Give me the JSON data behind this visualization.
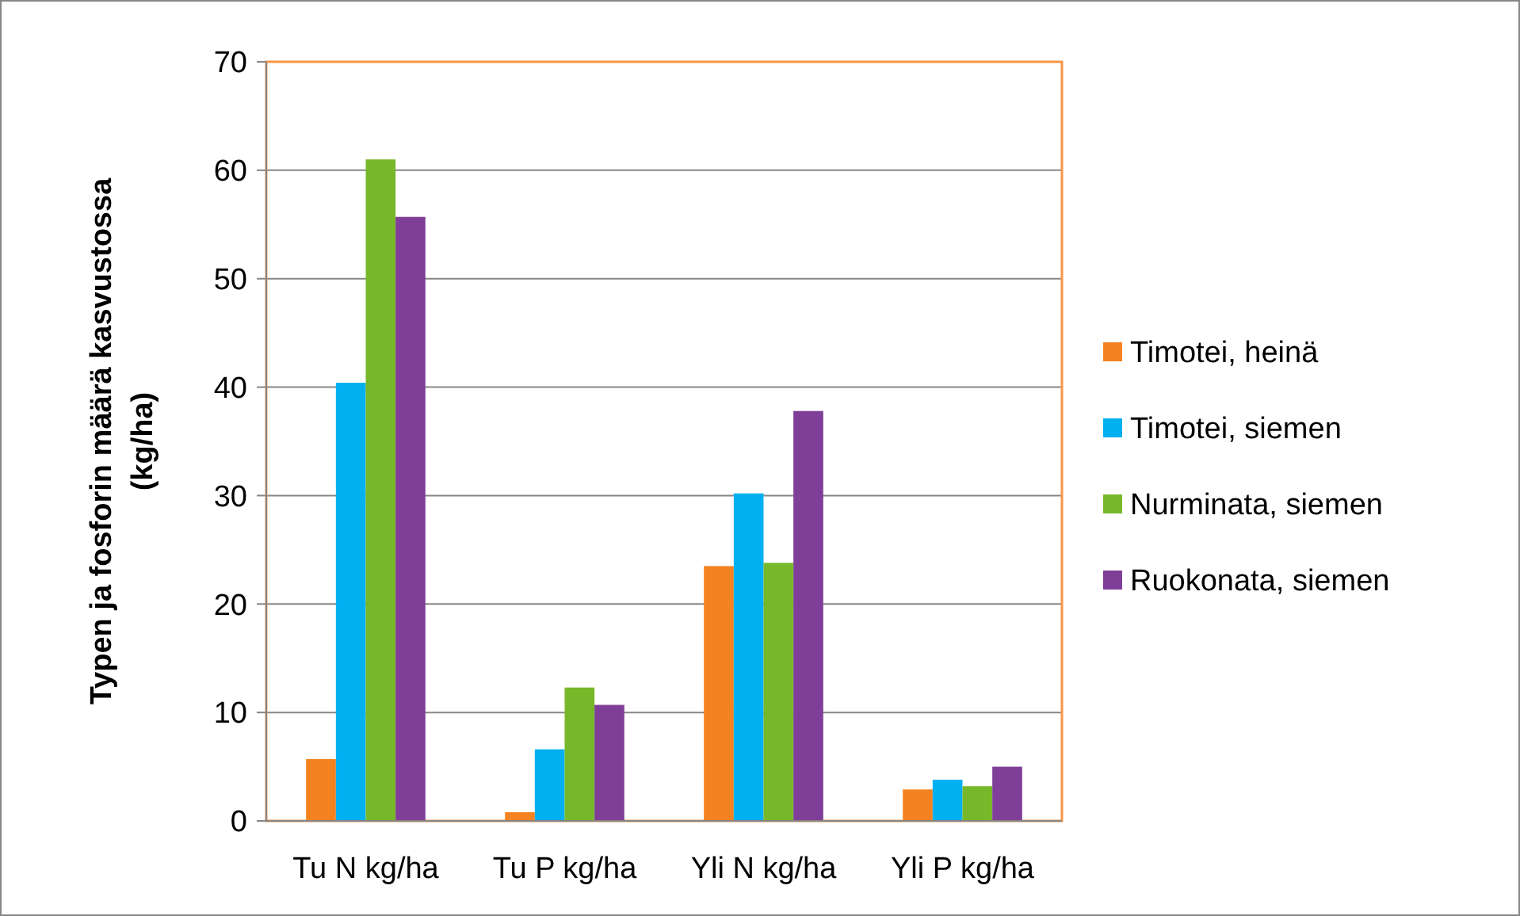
{
  "chart_data": {
    "type": "bar",
    "ylabel": "Typen ja fosforin määrä kasvustossa (kg/ha)",
    "categories": [
      "Tu N kg/ha",
      "Tu P kg/ha",
      "Yli N kg/ha",
      "Yli P kg/ha"
    ],
    "series": [
      {
        "name": "Timotei, heinä",
        "color": "#f58220",
        "values": [
          5.7,
          0.8,
          23.5,
          2.9
        ]
      },
      {
        "name": "Timotei, siemen",
        "color": "#00b0f0",
        "values": [
          40.4,
          6.6,
          30.2,
          3.8
        ]
      },
      {
        "name": "Nurminata, siemen",
        "color": "#77b82a",
        "values": [
          61,
          12.3,
          23.8,
          3.2
        ]
      },
      {
        "name": "Ruokonata, siemen",
        "color": "#7f3f98",
        "values": [
          55.7,
          10.7,
          37.8,
          5.0
        ]
      }
    ],
    "ylim": [
      0,
      70
    ],
    "yticks": [
      0,
      10,
      20,
      30,
      40,
      50,
      60,
      70
    ],
    "grid": "y",
    "legend": "right"
  }
}
